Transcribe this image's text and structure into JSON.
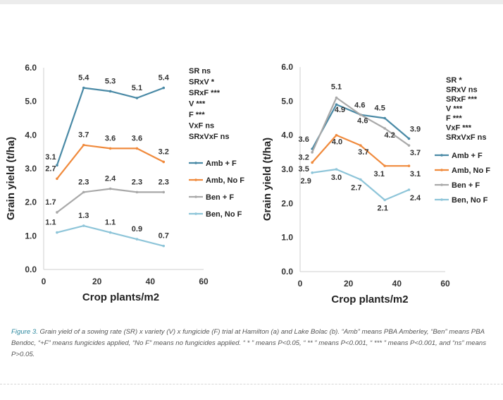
{
  "chart_data": [
    {
      "type": "line",
      "site": "Hamilton (a)",
      "xlabel": "Crop plants/m2",
      "ylabel": "Grain yield (t/ha)",
      "xlim": [
        0,
        60
      ],
      "ylim": [
        0,
        6
      ],
      "xticks": [
        0,
        20,
        40,
        60
      ],
      "yticks": [
        0,
        1,
        2,
        3,
        4,
        5,
        6
      ],
      "x": [
        5,
        15,
        25,
        35,
        45
      ],
      "series": [
        {
          "name": "Amb + F",
          "color": "#4a8aa6",
          "values": [
            3.1,
            5.4,
            5.3,
            5.1,
            5.4
          ]
        },
        {
          "name": "Amb, No F",
          "color": "#f08a3c",
          "values": [
            2.7,
            3.7,
            3.6,
            3.6,
            3.2
          ]
        },
        {
          "name": "Ben + F",
          "color": "#a9a9a9",
          "values": [
            1.7,
            2.3,
            2.4,
            2.3,
            2.3
          ]
        },
        {
          "name": "Ben, No F",
          "color": "#8ec5d9",
          "values": [
            1.1,
            1.3,
            1.1,
            0.9,
            0.7
          ]
        }
      ],
      "stats": [
        "SR ns",
        "SRxV *",
        "SRxF ***",
        "V ***",
        "F ***",
        "VxF ns",
        "SRxVxF ns"
      ]
    },
    {
      "type": "line",
      "site": "Lake Bolac (b)",
      "xlabel": "Crop plants/m2",
      "ylabel": "Grain yield (t/ha)",
      "xlim": [
        0,
        60
      ],
      "ylim": [
        0,
        6
      ],
      "xticks": [
        0,
        20,
        40,
        60
      ],
      "yticks": [
        0,
        1,
        2,
        3,
        4,
        5,
        6
      ],
      "x": [
        5,
        15,
        25,
        35,
        45
      ],
      "series": [
        {
          "name": "Amb + F",
          "color": "#4a8aa6",
          "values": [
            3.6,
            4.9,
            4.6,
            4.5,
            3.9
          ]
        },
        {
          "name": "Amb, No F",
          "color": "#f08a3c",
          "values": [
            3.2,
            4.0,
            3.7,
            3.1,
            3.1
          ]
        },
        {
          "name": "Ben + F",
          "color": "#a9a9a9",
          "values": [
            3.5,
            5.1,
            4.6,
            4.2,
            3.7
          ]
        },
        {
          "name": "Ben, No F",
          "color": "#8ec5d9",
          "values": [
            2.9,
            3.0,
            2.7,
            2.1,
            2.4
          ]
        }
      ],
      "stats": [
        "SR *",
        "SRxV ns",
        "SRxF ***",
        "V ***",
        "F ***",
        "VxF ***",
        "SRxVxF ns"
      ]
    }
  ],
  "caption": {
    "label": "Figure 3.",
    "text": " Grain yield of a sowing rate (SR) x variety (V) x fungicide (F) trial at Hamilton (a) and Lake Bolac (b). “Amb” means PBA Amberley, “Ben” means PBA Bendoc, “+F” means fungicides applied, “No F” means no fungicides applied. “ * ” means P<0.05, “ ** ” means P<0.001, “ *** ” means P<0.001, and “ns” means P>0.05."
  }
}
